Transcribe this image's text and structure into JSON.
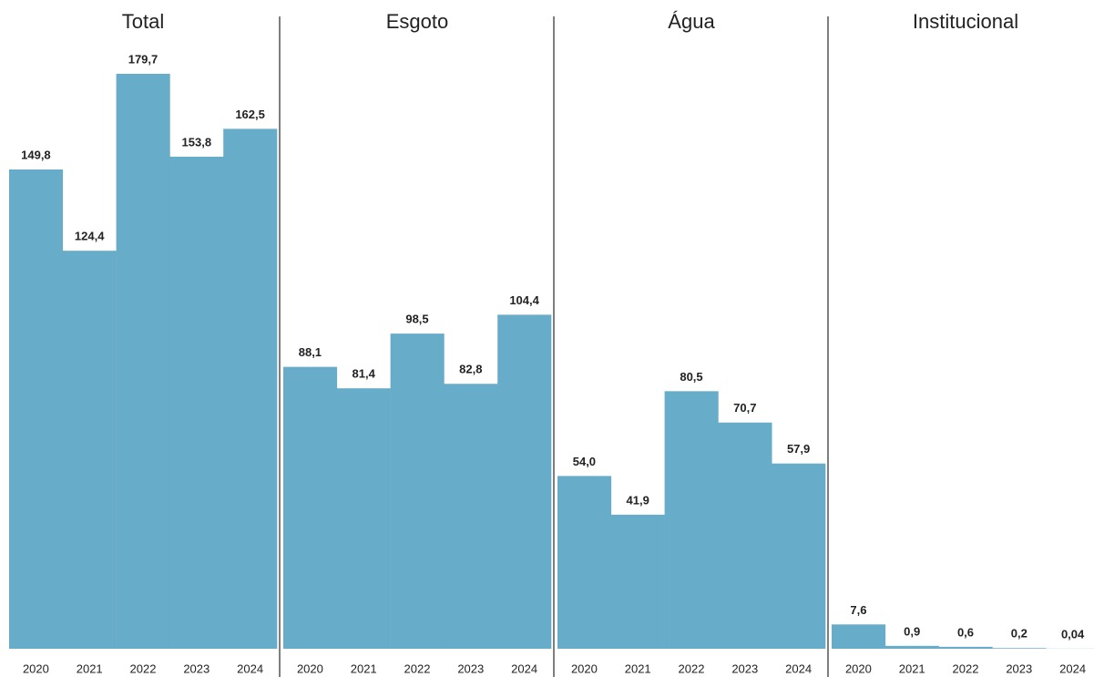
{
  "chart_data": [
    {
      "type": "bar",
      "title": "Total",
      "categories": [
        "2020",
        "2021",
        "2022",
        "2023",
        "2024"
      ],
      "values": [
        149.8,
        124.4,
        179.7,
        153.8,
        162.5
      ],
      "value_labels": [
        "149,8",
        "124,4",
        "179,7",
        "153,8",
        "162,5"
      ],
      "color": "#67acc9"
    },
    {
      "type": "bar",
      "title": "Esgoto",
      "categories": [
        "2020",
        "2021",
        "2022",
        "2023",
        "2024"
      ],
      "values": [
        88.1,
        81.4,
        98.5,
        82.8,
        104.4
      ],
      "value_labels": [
        "88,1",
        "81,4",
        "98,5",
        "82,8",
        "104,4"
      ],
      "color": "#67acc9"
    },
    {
      "type": "bar",
      "title": "Água",
      "categories": [
        "2020",
        "2021",
        "2022",
        "2023",
        "2024"
      ],
      "values": [
        54.0,
        41.9,
        80.5,
        70.7,
        57.9
      ],
      "value_labels": [
        "54,0",
        "41,9",
        "80,5",
        "70,7",
        "57,9"
      ],
      "color": "#67acc9"
    },
    {
      "type": "bar",
      "title": "Institucional",
      "categories": [
        "2020",
        "2021",
        "2022",
        "2023",
        "2024"
      ],
      "values": [
        7.6,
        0.9,
        0.6,
        0.2,
        0.04
      ],
      "value_labels": [
        "7,6",
        "0,9",
        "0,6",
        "0,2",
        "0,04"
      ],
      "color": "#67acc9"
    }
  ]
}
